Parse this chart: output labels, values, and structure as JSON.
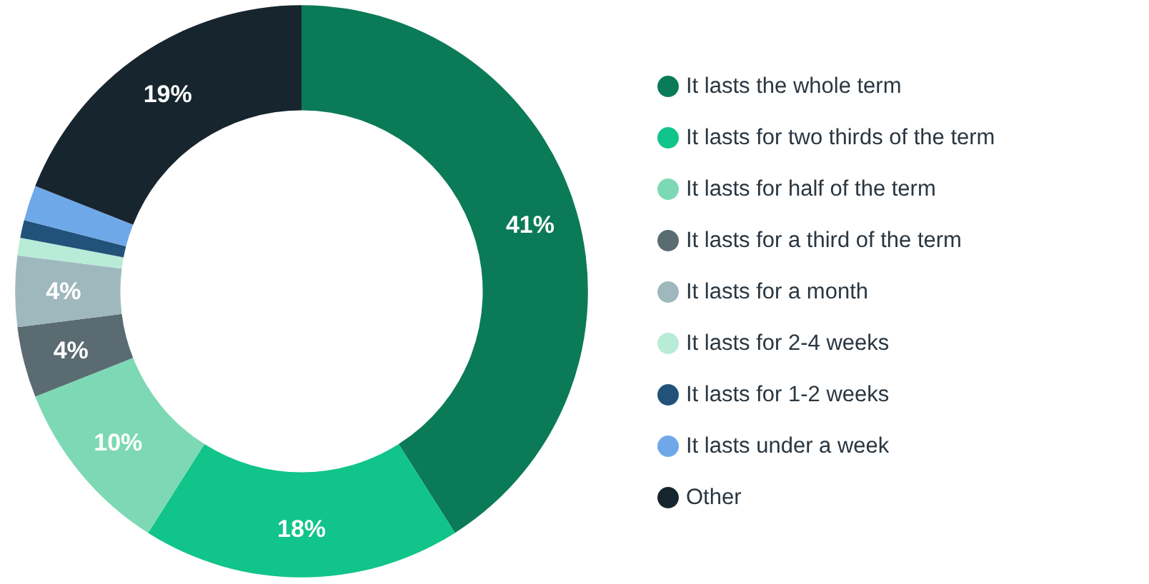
{
  "chart_data": {
    "type": "donut",
    "categories": [
      "It lasts the whole term",
      "It lasts for two thirds of the term",
      "It lasts for half of the term",
      "It lasts for a third of the term",
      "It lasts for a month",
      "It lasts for 2-4 weeks",
      "It lasts for 1-2 weeks",
      "It lasts under a week",
      "Other"
    ],
    "values": [
      41,
      18,
      10,
      4,
      4,
      1,
      1,
      2,
      19
    ],
    "colors": [
      "#0b7a57",
      "#10c48a",
      "#7dd9b5",
      "#5a6b72",
      "#9fb8be",
      "#b8ecd8",
      "#22527a",
      "#6fa8e8",
      "#17252f"
    ],
    "value_labels": [
      "41%",
      "18%",
      "10%",
      "4%",
      "4%",
      null,
      null,
      null,
      "19%"
    ],
    "legend": "right"
  }
}
